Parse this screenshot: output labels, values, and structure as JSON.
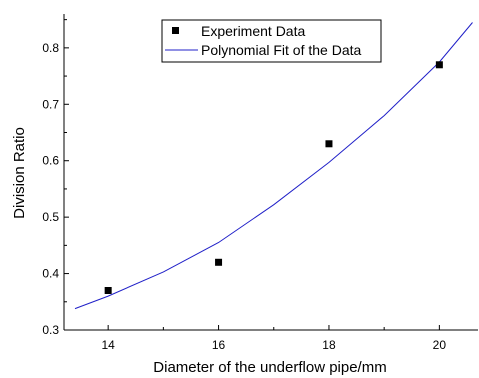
{
  "chart_data": {
    "type": "scatter",
    "title": "",
    "xlabel": "Diameter of the underflow pipe/mm",
    "ylabel": "Division Ratio",
    "xlim": [
      13.2,
      20.7
    ],
    "ylim": [
      0.3,
      0.86
    ],
    "xticks": [
      "14",
      "16",
      "18",
      "20"
    ],
    "yticks": [
      "0.3",
      "0.4",
      "0.5",
      "0.6",
      "0.7",
      "0.8"
    ],
    "grid": false,
    "legend_position": "top-center",
    "series": [
      {
        "name": "Experiment Data",
        "kind": "scatter",
        "marker": "square",
        "color": "#000000",
        "x": [
          14,
          16,
          18,
          20
        ],
        "y": [
          0.37,
          0.42,
          0.63,
          0.77
        ]
      },
      {
        "name": "Polynomial Fit of the Data",
        "kind": "line",
        "color": "#2020c8",
        "x": [
          13.4,
          14,
          15,
          16,
          17,
          18,
          19,
          20,
          20.6
        ],
        "y": [
          0.338,
          0.36,
          0.403,
          0.455,
          0.522,
          0.597,
          0.68,
          0.775,
          0.845
        ]
      }
    ]
  }
}
